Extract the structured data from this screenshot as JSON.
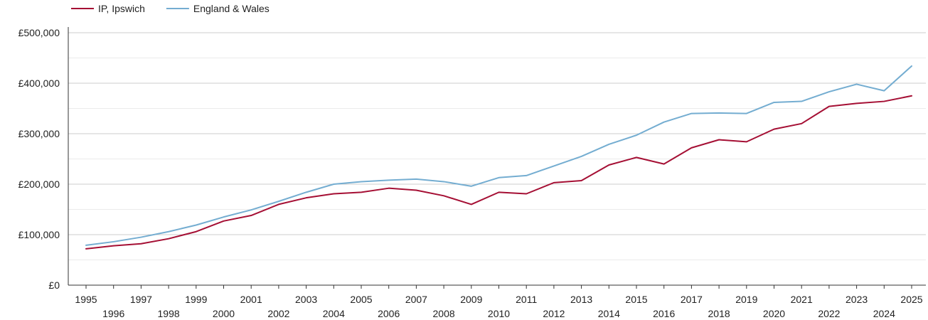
{
  "chart_data": {
    "type": "line",
    "title": "",
    "xlabel": "",
    "ylabel": "",
    "legend_position": "top-left",
    "grid": true,
    "xlim": [
      1995,
      2025
    ],
    "ylim": [
      0,
      500000
    ],
    "x": [
      1995,
      1996,
      1997,
      1998,
      1999,
      2000,
      2001,
      2002,
      2003,
      2004,
      2005,
      2006,
      2007,
      2008,
      2009,
      2010,
      2011,
      2012,
      2013,
      2014,
      2015,
      2016,
      2017,
      2018,
      2019,
      2020,
      2021,
      2022,
      2023,
      2024,
      2025
    ],
    "x_tick_labels": [
      "1995",
      "1996",
      "1997",
      "1998",
      "1999",
      "2000",
      "2001",
      "2002",
      "2003",
      "2004",
      "2005",
      "2006",
      "2007",
      "2008",
      "2009",
      "2010",
      "2011",
      "2012",
      "2013",
      "2014",
      "2015",
      "2016",
      "2017",
      "2018",
      "2019",
      "2020",
      "2021",
      "2022",
      "2023",
      "2024",
      "2025"
    ],
    "y_ticks": [
      0,
      100000,
      200000,
      300000,
      400000,
      500000
    ],
    "y_tick_labels": [
      "£0",
      "£100,000",
      "£200,000",
      "£300,000",
      "£400,000",
      "£500,000"
    ],
    "series": [
      {
        "name": "IP, Ipswich",
        "color": "#a50f34",
        "values": [
          72000,
          78000,
          82000,
          92000,
          106000,
          127000,
          138000,
          160000,
          173000,
          181000,
          184000,
          192000,
          188000,
          177000,
          160000,
          184000,
          181000,
          203000,
          207000,
          238000,
          253000,
          240000,
          272000,
          288000,
          284000,
          309000,
          320000,
          354000,
          360000,
          364000,
          375000
        ]
      },
      {
        "name": "England & Wales",
        "color": "#74add1",
        "values": [
          79000,
          86000,
          95000,
          106000,
          119000,
          135000,
          149000,
          166000,
          184000,
          200000,
          205000,
          208000,
          210000,
          205000,
          196000,
          213000,
          217000,
          236000,
          255000,
          279000,
          297000,
          323000,
          340000,
          341000,
          340000,
          362000,
          364000,
          383000,
          398000,
          385000,
          434000
        ]
      }
    ]
  }
}
